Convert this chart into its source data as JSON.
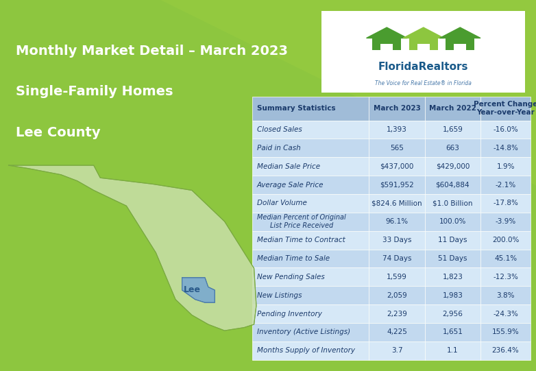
{
  "title_line1": "Monthly Market Detail – March 2023",
  "title_line2": "Single-Family Homes",
  "title_line3": "Lee County",
  "header": [
    "Summary Statistics",
    "March 2023",
    "March 2022",
    "Percent Change\nYear-over-Year"
  ],
  "rows": [
    [
      "Closed Sales",
      "1,393",
      "1,659",
      "-16.0%"
    ],
    [
      "Paid in Cash",
      "565",
      "663",
      "-14.8%"
    ],
    [
      "Median Sale Price",
      "$437,000",
      "$429,000",
      "1.9%"
    ],
    [
      "Average Sale Price",
      "$591,952",
      "$604,884",
      "-2.1%"
    ],
    [
      "Dollar Volume",
      "$824.6 Million",
      "$1.0 Billion",
      "-17.8%"
    ],
    [
      "Median Percent of Original\nList Price Received",
      "96.1%",
      "100.0%",
      "-3.9%"
    ],
    [
      "Median Time to Contract",
      "33 Days",
      "11 Days",
      "200.0%"
    ],
    [
      "Median Time to Sale",
      "74 Days",
      "51 Days",
      "45.1%"
    ],
    [
      "New Pending Sales",
      "1,599",
      "1,823",
      "-12.3%"
    ],
    [
      "New Listings",
      "2,059",
      "1,983",
      "3.8%"
    ],
    [
      "Pending Inventory",
      "2,239",
      "2,956",
      "-24.3%"
    ],
    [
      "Inventory (Active Listings)",
      "4,225",
      "1,651",
      "155.9%"
    ],
    [
      "Months Supply of Inventory",
      "3.7",
      "1.1",
      "236.4%"
    ]
  ],
  "bg_color_top": "#8dc63f",
  "bg_color_bottom": "#6aaa22",
  "header_bg": "#a8c8e8",
  "row_bg_light": "#d6e8f7",
  "row_bg_medium": "#c2d9ef",
  "table_header_text": "#1a3a6b",
  "table_text": "#1a3a6b",
  "title_text_color": "#ffffff",
  "map_color": "#b8d4ea",
  "map_outline": "#7aaad0",
  "logo_green1": "#4a9c2f",
  "logo_green2": "#8dc63f",
  "logo_blue": "#5b9bd5"
}
